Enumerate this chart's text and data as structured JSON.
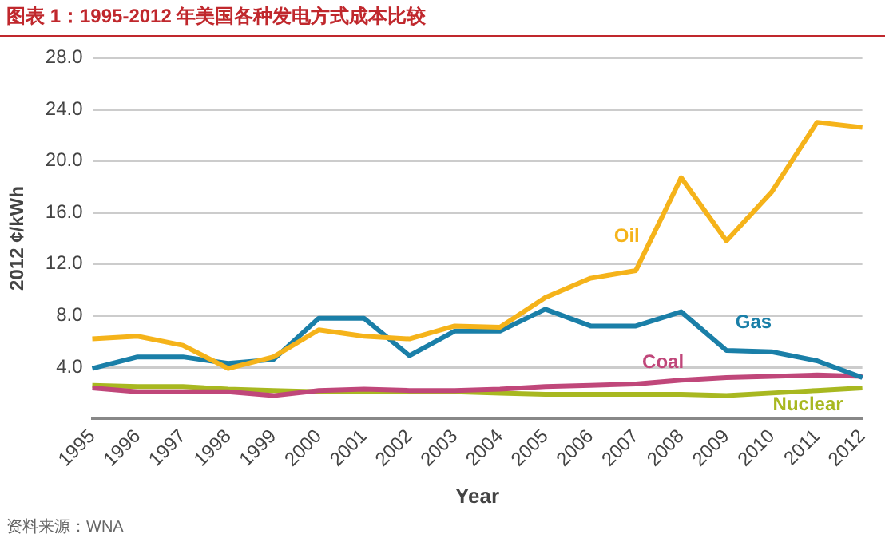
{
  "chart_data": {
    "type": "line",
    "title": "图表 1：1995-2012 年美国各种发电方式成本比较",
    "xlabel": "Year",
    "ylabel": "2012 ¢/kWh",
    "annotations": [
      "资料来源：WNA"
    ],
    "categories": [
      "1995",
      "1996",
      "1997",
      "1998",
      "1999",
      "2000",
      "2001",
      "2002",
      "2003",
      "2004",
      "2005",
      "2006",
      "2007",
      "2008",
      "2009",
      "2010",
      "2011",
      "2012"
    ],
    "series": [
      {
        "name": "Oil",
        "color": "#f5b31a",
        "values": [
          6.2,
          6.4,
          5.7,
          3.9,
          4.8,
          6.9,
          6.4,
          6.2,
          7.2,
          7.1,
          9.4,
          10.9,
          11.5,
          18.7,
          13.8,
          17.6,
          23.0,
          22.6
        ]
      },
      {
        "name": "Gas",
        "color": "#1a7fa8",
        "values": [
          3.9,
          4.8,
          4.8,
          4.3,
          4.6,
          7.8,
          7.8,
          4.9,
          6.8,
          6.8,
          8.5,
          7.2,
          7.2,
          8.3,
          5.3,
          5.2,
          4.5,
          3.2
        ]
      },
      {
        "name": "Coal",
        "color": "#c0477a",
        "values": [
          2.4,
          2.1,
          2.1,
          2.1,
          1.8,
          2.2,
          2.3,
          2.2,
          2.2,
          2.3,
          2.5,
          2.6,
          2.7,
          3.0,
          3.2,
          3.3,
          3.4,
          3.3
        ]
      },
      {
        "name": "Nuclear",
        "color": "#a8b820",
        "values": [
          2.6,
          2.5,
          2.5,
          2.3,
          2.2,
          2.1,
          2.1,
          2.1,
          2.1,
          2.0,
          1.9,
          1.9,
          1.9,
          1.9,
          1.8,
          2.0,
          2.2,
          2.4
        ]
      }
    ],
    "ylim": [
      0,
      28
    ],
    "yticks": [
      {
        "value": 4,
        "label": "4.0"
      },
      {
        "value": 8,
        "label": "8.0"
      },
      {
        "value": 12,
        "label": "12.0"
      },
      {
        "value": 16,
        "label": "16.0"
      },
      {
        "value": 20,
        "label": "20.0"
      },
      {
        "value": 24,
        "label": "24.0"
      },
      {
        "value": 28,
        "label": "28.0"
      }
    ],
    "grid": "y",
    "legend": false,
    "marker": "none",
    "line_style": "solid"
  }
}
